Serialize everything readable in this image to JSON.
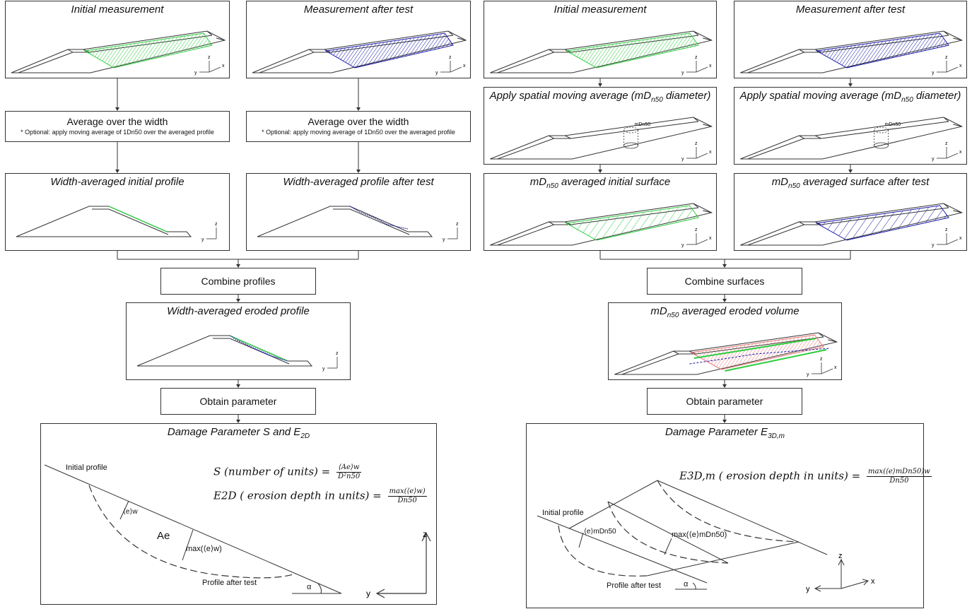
{
  "left": {
    "init_title": "Initial measurement",
    "after_title": "Measurement after test",
    "avg_title": "Average over the width",
    "avg_note": "* Optional: apply moving average of 1Dn50 over the averaged profile",
    "prof_init_title": "Width-averaged initial profile",
    "prof_after_title": "Width-averaged profile after test",
    "combine": "Combine profiles",
    "eroded_title": "Width-averaged eroded profile",
    "obtain": "Obtain parameter",
    "param_title_prefix": "Damage Parameter S and E",
    "param_title_sub": "2D",
    "formula_s": "S (number of units) =",
    "formula_s_num": "⟨Ae⟩w",
    "formula_s_den": "D²n50",
    "formula_e": "E2D ( erosion depth in units) =",
    "formula_e_num": "max(⟨e⟩w)",
    "formula_e_den": "Dn50",
    "lbl_initial_profile": "Initial profile",
    "lbl_after_profile": "Profile after test",
    "lbl_ew": "⟨e⟩w",
    "lbl_ae": "Ae",
    "lbl_max": "max(⟨e⟩w)",
    "lbl_alpha": "α"
  },
  "right": {
    "init_title": "Initial measurement",
    "after_title": "Measurement after test",
    "sma_title_a": "Apply spatial moving average (mD",
    "sma_title_sub": "n50",
    "sma_title_b": " diameter)",
    "sma_label": "mDn50",
    "surf_init_a": "mD",
    "surf_init_sub": "n50",
    "surf_init_b": " averaged initial surface",
    "surf_after_b": " averaged surface after test",
    "combine": "Combine surfaces",
    "vol_b": " averaged eroded volume",
    "obtain": "Obtain parameter",
    "param_title_prefix": "Damage Parameter E",
    "param_title_sub": "3D,m",
    "formula_e": "E3D,m ( erosion depth in units) =",
    "formula_e_num": "max(⟨e⟩mDn50)w",
    "formula_e_den": "Dn50",
    "lbl_initial_profile": "Initial profile",
    "lbl_after_profile": "Profile after test",
    "lbl_emd": "⟨e⟩mDn50",
    "lbl_max": "max(⟨e⟩mDn50)",
    "lbl_alpha": "α"
  },
  "axes": {
    "x": "x",
    "y": "y",
    "z": "z"
  },
  "colors": {
    "initial": "#2ecc40",
    "after": "#1a1aa8",
    "eroded": "#e57373",
    "line": "#333333"
  }
}
